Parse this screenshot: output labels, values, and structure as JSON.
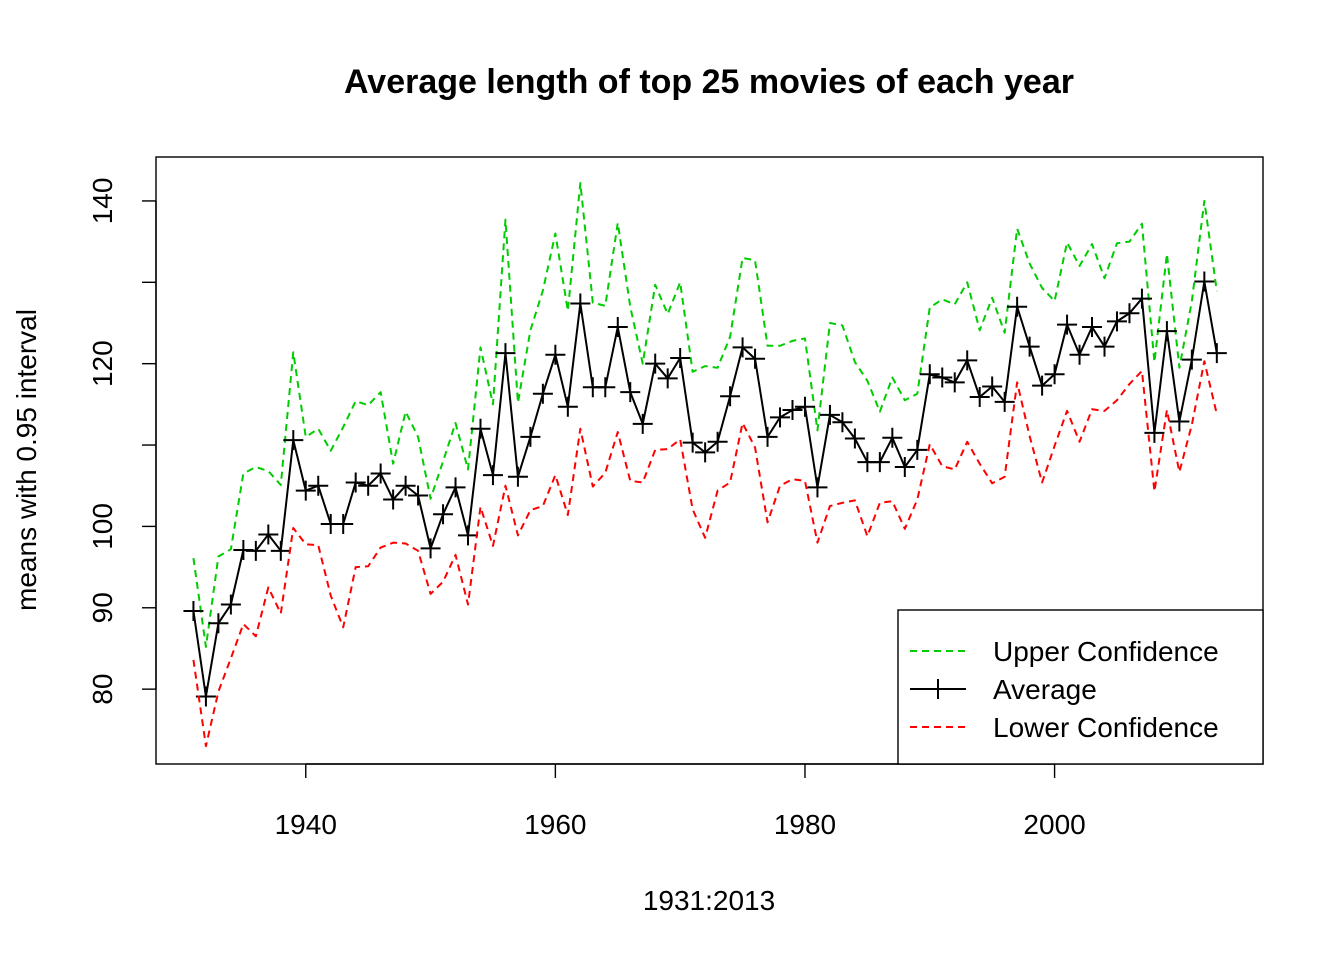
{
  "chart_data": {
    "type": "line",
    "title": "Average length of top 25 movies of each year",
    "xlabel": "1931:2013",
    "ylabel": "means with 0.95 interval",
    "xlim": [
      1928,
      2016.7
    ],
    "ylim": [
      70.8,
      145.4
    ],
    "x_ticks": [
      1940,
      1960,
      1980,
      2000
    ],
    "y_ticks": [
      80,
      90,
      100,
      120,
      140
    ],
    "legend_position": "bottom-right",
    "x": [
      1931,
      1932,
      1933,
      1934,
      1935,
      1936,
      1937,
      1938,
      1939,
      1940,
      1941,
      1942,
      1943,
      1944,
      1945,
      1946,
      1947,
      1948,
      1949,
      1950,
      1951,
      1952,
      1953,
      1954,
      1955,
      1956,
      1957,
      1958,
      1959,
      1960,
      1961,
      1962,
      1963,
      1964,
      1965,
      1966,
      1967,
      1968,
      1969,
      1970,
      1971,
      1972,
      1973,
      1974,
      1975,
      1976,
      1977,
      1978,
      1979,
      1980,
      1981,
      1982,
      1983,
      1984,
      1985,
      1986,
      1987,
      1988,
      1989,
      1990,
      1991,
      1992,
      1993,
      1994,
      1995,
      1996,
      1997,
      1998,
      1999,
      2000,
      2001,
      2002,
      2003,
      2004,
      2005,
      2006,
      2007,
      2008,
      2009,
      2010,
      2011,
      2012,
      2013
    ],
    "series": [
      {
        "name": "Upper Confidence",
        "color": "#00cd00",
        "line_style": "dashed",
        "values": [
          96.1,
          85.2,
          96.3,
          97.2,
          106.5,
          107.3,
          106.8,
          105.1,
          121.4,
          111.0,
          112.0,
          109.3,
          112.2,
          115.4,
          114.9,
          116.5,
          107.7,
          114.1,
          111.0,
          103.4,
          108.0,
          112.7,
          107.0,
          122.0,
          115.0,
          137.7,
          115.2,
          124.1,
          129.0,
          136.0,
          126.5,
          142.2,
          127.5,
          127.1,
          137.3,
          127.0,
          120.0,
          129.7,
          126.1,
          130.0,
          119.0,
          119.7,
          119.5,
          123.3,
          133.0,
          132.7,
          122.2,
          122.2,
          122.8,
          123.1,
          111.8,
          125.0,
          124.7,
          120.2,
          117.9,
          114.1,
          118.3,
          115.5,
          116.3,
          126.9,
          127.9,
          127.3,
          130.0,
          124.1,
          128.1,
          123.8,
          136.6,
          132.3,
          129.3,
          127.7,
          134.9,
          132.0,
          134.7,
          130.5,
          134.8,
          135.0,
          137.2,
          120.2,
          133.5,
          119.5,
          127.7,
          140.0,
          128.9
        ]
      },
      {
        "name": "Average",
        "color": "#000000",
        "line_style": "solid",
        "marker": "+",
        "values": [
          89.6,
          79.1,
          88.1,
          90.4,
          97.1,
          97.0,
          99.0,
          97.0,
          110.6,
          104.4,
          105.0,
          100.3,
          100.3,
          105.4,
          105.0,
          106.5,
          103.3,
          105.0,
          103.8,
          97.3,
          101.5,
          104.8,
          98.9,
          112.0,
          106.3,
          121.3,
          106.1,
          111.0,
          116.3,
          121.1,
          114.7,
          127.4,
          117.1,
          117.1,
          124.5,
          116.5,
          112.6,
          120.0,
          118.2,
          120.7,
          110.3,
          109.1,
          110.4,
          116.0,
          122.0,
          120.6,
          111.0,
          113.4,
          114.3,
          114.7,
          104.8,
          113.7,
          112.8,
          110.8,
          107.9,
          107.9,
          110.9,
          107.3,
          109.4,
          118.7,
          118.3,
          117.7,
          120.4,
          115.9,
          117.2,
          115.3,
          127.0,
          122.1,
          117.3,
          118.7,
          124.8,
          121.1,
          124.5,
          122.1,
          125.2,
          126.2,
          128.0,
          111.5,
          124.0,
          112.9,
          120.5,
          130.1,
          121.3
        ]
      },
      {
        "name": "Lower Confidence",
        "color": "#ff0000",
        "line_style": "dashed",
        "values": [
          83.6,
          73.0,
          79.7,
          83.8,
          88.0,
          86.5,
          92.5,
          89.3,
          99.8,
          97.8,
          97.7,
          91.5,
          87.6,
          95.0,
          95.1,
          97.4,
          98.0,
          97.9,
          97.0,
          91.7,
          93.2,
          96.5,
          90.4,
          102.4,
          97.6,
          105.0,
          98.9,
          102.0,
          102.5,
          106.3,
          101.4,
          112.0,
          104.9,
          106.6,
          111.6,
          105.6,
          105.4,
          109.4,
          109.5,
          110.7,
          102.1,
          98.6,
          104.4,
          105.4,
          112.7,
          109.7,
          100.5,
          105.0,
          105.8,
          105.6,
          98.0,
          102.5,
          102.9,
          103.2,
          98.8,
          102.9,
          103.1,
          99.7,
          103.3,
          110.1,
          107.4,
          107.0,
          110.4,
          107.7,
          105.3,
          106.1,
          117.7,
          111.1,
          105.4,
          109.9,
          114.2,
          110.4,
          114.4,
          114.2,
          115.5,
          117.5,
          119.1,
          104.3,
          114.3,
          106.7,
          112.5,
          120.3,
          113.8
        ]
      }
    ]
  }
}
